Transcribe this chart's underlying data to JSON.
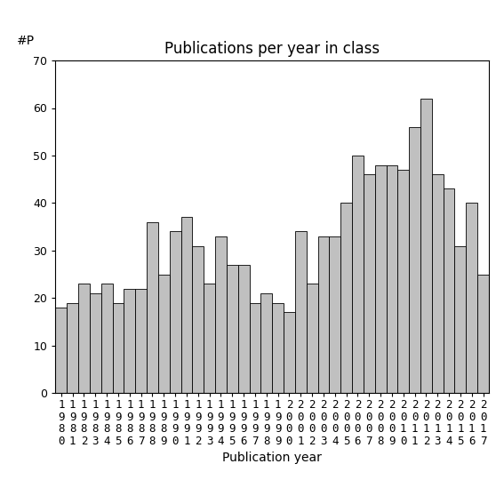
{
  "title": "Publications per year in class",
  "xlabel": "Publication year",
  "ylabel": "#P",
  "years": [
    1980,
    1981,
    1982,
    1983,
    1984,
    1985,
    1986,
    1987,
    1988,
    1989,
    1990,
    1991,
    1992,
    1993,
    1994,
    1995,
    1996,
    1997,
    1998,
    1999,
    2000,
    2001,
    2002,
    2003,
    2004,
    2005,
    2006,
    2007,
    2008,
    2009,
    2010,
    2011,
    2012,
    2013,
    2014,
    2015,
    2016,
    2017
  ],
  "values": [
    18,
    19,
    23,
    21,
    23,
    19,
    22,
    22,
    36,
    25,
    34,
    37,
    31,
    23,
    33,
    27,
    27,
    19,
    21,
    19,
    17,
    34,
    23,
    33,
    33,
    40,
    50,
    46,
    48,
    48,
    47,
    56,
    62,
    46,
    43,
    31,
    40,
    25
  ],
  "bar_color": "#c0c0c0",
  "bar_edge_color": "#000000",
  "ylim": [
    0,
    70
  ],
  "yticks": [
    0,
    10,
    20,
    30,
    40,
    50,
    60,
    70
  ],
  "background_color": "#ffffff",
  "title_fontsize": 12,
  "axis_fontsize": 10,
  "tick_fontsize": 9
}
